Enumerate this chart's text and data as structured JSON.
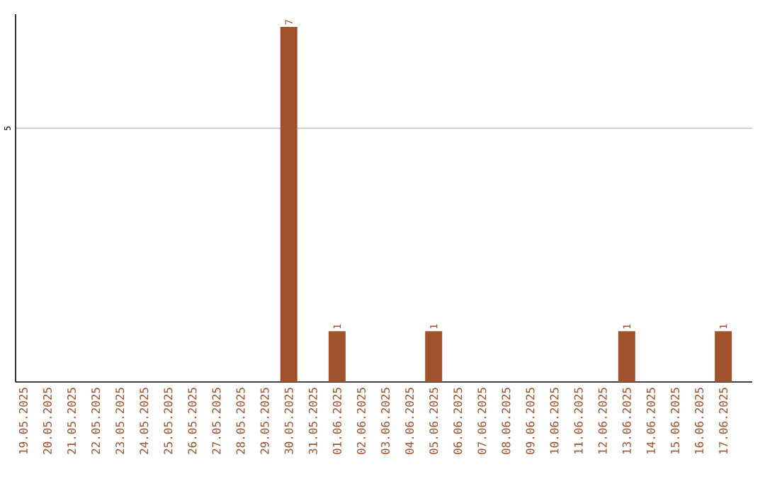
{
  "chart_data": {
    "type": "bar",
    "categories": [
      "19.05.2025",
      "20.05.2025",
      "21.05.2025",
      "22.05.2025",
      "23.05.2025",
      "24.05.2025",
      "25.05.2025",
      "26.05.2025",
      "27.05.2025",
      "28.05.2025",
      "29.05.2025",
      "30.05.2025",
      "31.05.2025",
      "01.06.2025",
      "02.06.2025",
      "03.06.2025",
      "04.06.2025",
      "05.06.2025",
      "06.06.2025",
      "07.06.2025",
      "08.06.2025",
      "09.06.2025",
      "10.06.2025",
      "11.06.2025",
      "12.06.2025",
      "13.06.2025",
      "14.06.2025",
      "15.06.2025",
      "16.06.2025",
      "17.06.2025"
    ],
    "values": [
      0,
      0,
      0,
      0,
      0,
      0,
      0,
      0,
      0,
      0,
      0,
      7,
      0,
      1,
      0,
      0,
      0,
      1,
      0,
      0,
      0,
      0,
      0,
      0,
      0,
      1,
      0,
      0,
      0,
      1
    ],
    "value_labels": [
      null,
      null,
      null,
      null,
      null,
      null,
      null,
      null,
      null,
      null,
      null,
      "7",
      null,
      "1",
      null,
      null,
      null,
      "1",
      null,
      null,
      null,
      null,
      null,
      null,
      null,
      "1",
      null,
      null,
      null,
      "1"
    ],
    "color": "#a0522d",
    "ylim": [
      0,
      7.25
    ],
    "yticks": [
      5
    ],
    "grid": "y"
  }
}
